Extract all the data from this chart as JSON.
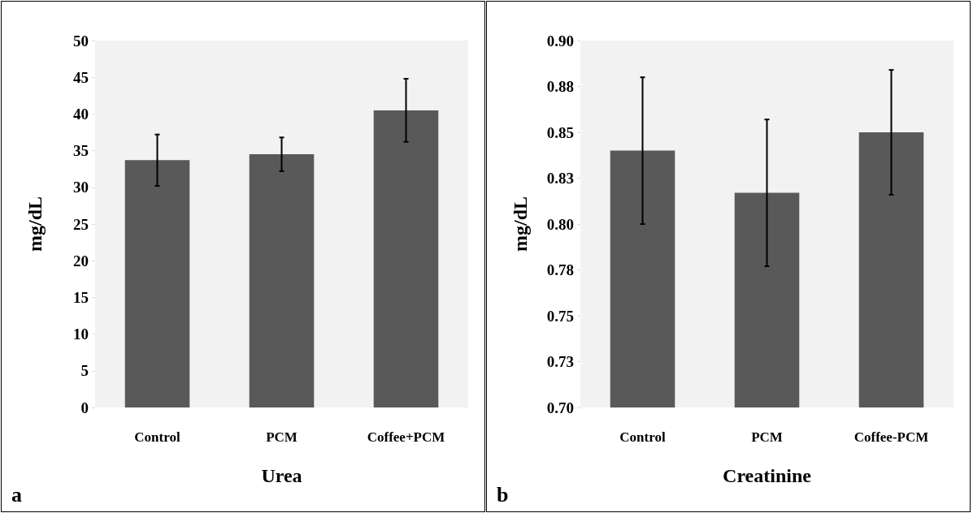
{
  "chart_data": [
    {
      "type": "bar",
      "xlabel": "Urea",
      "ylabel": "mg/dL",
      "categories": [
        "Control",
        "PCM",
        "Coffee+PCM"
      ],
      "values": [
        33.7,
        34.5,
        40.5
      ],
      "errors": [
        3.5,
        2.3,
        4.3
      ],
      "color": "#595959",
      "ylim": [
        0,
        50
      ],
      "yticks": [
        0,
        5,
        10,
        15,
        20,
        25,
        30,
        35,
        40,
        45,
        50
      ],
      "annotations": [
        "a"
      ]
    },
    {
      "type": "bar",
      "xlabel": "Creatinine",
      "ylabel": "mg/dL",
      "categories": [
        "Control",
        "PCM",
        "Coffee-PCM"
      ],
      "values": [
        0.84,
        0.817,
        0.85
      ],
      "errors": [
        0.04,
        0.04,
        0.034
      ],
      "color": "#595959",
      "ylim": [
        0.7,
        0.9
      ],
      "yticks": [
        {
          "value": 0.7,
          "label": "0.70"
        },
        {
          "value": 0.725,
          "label": "0.73"
        },
        {
          "value": 0.75,
          "label": "0.75"
        },
        {
          "value": 0.775,
          "label": "0.78"
        },
        {
          "value": 0.8,
          "label": "0.80"
        },
        {
          "value": 0.825,
          "label": "0.83"
        },
        {
          "value": 0.85,
          "label": "0.85"
        },
        {
          "value": 0.875,
          "label": "0.88"
        },
        {
          "value": 0.9,
          "label": "0.90"
        }
      ],
      "annotations": [
        "b"
      ]
    }
  ]
}
